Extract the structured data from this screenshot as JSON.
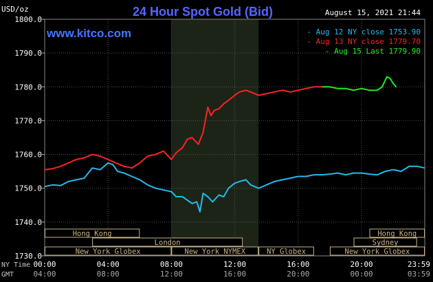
{
  "header": {
    "unit": "USD/oz",
    "title": "24 Hour Spot Gold (Bid)",
    "timestamp": "August 15, 2021 21:44",
    "site": "www.kitco.com"
  },
  "legend": [
    {
      "label": "Aug 12 NY close 1753.90",
      "color": "#22bbee"
    },
    {
      "label": "Aug 13 NY close 1779.70",
      "color": "#ff2222"
    },
    {
      "label": "Aug 15 Last 1779.90",
      "color": "#22ee22"
    }
  ],
  "time_labels": {
    "ny_label": "NY Time",
    "gmt_label": "GMT",
    "ny": [
      "00:00",
      "04:00",
      "08:00",
      "12:00",
      "16:00",
      "20:00",
      "23:59"
    ],
    "gmt": [
      "04:00",
      "08:00",
      "12:00",
      "16:00",
      "20:00",
      "00:00",
      "03:59"
    ]
  },
  "sessions": [
    {
      "label": "Hong Kong",
      "start": 0,
      "end": 6,
      "row": 0
    },
    {
      "label": "London",
      "start": 3,
      "end": 12.5,
      "row": 1
    },
    {
      "label": "New York Globex",
      "start": 0,
      "end": 8,
      "row": 2
    },
    {
      "label": "New York NYMEX",
      "start": 8,
      "end": 13.5,
      "row": 2
    },
    {
      "label": "NY Globex",
      "start": 13.5,
      "end": 17,
      "row": 2
    },
    {
      "label": "Hong Kong",
      "start": 20.5,
      "end": 23.99,
      "row": 0
    },
    {
      "label": "Sydney",
      "start": 19.5,
      "end": 23.5,
      "row": 1
    },
    {
      "label": "New York Globex",
      "start": 18,
      "end": 23.99,
      "row": 2
    }
  ],
  "colors": {
    "background": "#000000",
    "grid": "#555555",
    "highlight": "#1c2418",
    "session_border": "#c8b48a",
    "title": "#5566ff",
    "text": "#ffffff",
    "time_text": "#c8c8c8"
  },
  "chart_data": {
    "type": "line",
    "title": "24 Hour Spot Gold (Bid)",
    "ylabel": "USD/oz",
    "xlabel": "NY Time",
    "xlim": [
      0,
      23.99
    ],
    "ylim": [
      1730,
      1800
    ],
    "yticks": [
      1730.0,
      1740.0,
      1750.0,
      1760.0,
      1770.0,
      1780.0,
      1790.0,
      1800.0
    ],
    "x_highlight": [
      8,
      13.5
    ],
    "grid": true,
    "legend_position": "top-right",
    "series": [
      {
        "name": "Aug 12 NY close 1753.90",
        "color": "#22bbee",
        "x": [
          0,
          0.5,
          1,
          1.5,
          2,
          2.5,
          3,
          3.5,
          4,
          4.3,
          4.6,
          5,
          5.5,
          6,
          6.5,
          7,
          7.5,
          8,
          8.3,
          8.7,
          9,
          9.3,
          9.6,
          9.8,
          10,
          10.3,
          10.6,
          11,
          11.3,
          11.6,
          12,
          12.3,
          12.7,
          13,
          13.5,
          14,
          14.5,
          15,
          15.5,
          16,
          16.5,
          17,
          17.5,
          18,
          18.5,
          19,
          19.5,
          20,
          20.5,
          21,
          21.5,
          22,
          22.5,
          23,
          23.5,
          23.99
        ],
        "y": [
          1750.5,
          1751.0,
          1750.8,
          1752.0,
          1752.5,
          1753.0,
          1756.0,
          1755.5,
          1757.5,
          1757.0,
          1755.0,
          1754.5,
          1753.5,
          1752.5,
          1751.0,
          1750.0,
          1749.5,
          1749.0,
          1747.5,
          1747.5,
          1746.5,
          1745.5,
          1746.0,
          1743.0,
          1748.5,
          1747.5,
          1746.0,
          1748.0,
          1747.5,
          1750.0,
          1751.5,
          1752.0,
          1752.5,
          1751.0,
          1750.0,
          1751.0,
          1752.0,
          1752.5,
          1753.0,
          1753.5,
          1753.5,
          1754.0,
          1754.0,
          1754.2,
          1754.5,
          1754.0,
          1754.5,
          1754.5,
          1754.2,
          1754.0,
          1755.0,
          1755.5,
          1755.0,
          1756.5,
          1756.5,
          1756.0
        ]
      },
      {
        "name": "Aug 13 NY close 1779.70",
        "color": "#ff2222",
        "x": [
          0,
          0.5,
          1,
          1.5,
          2,
          2.5,
          3,
          3.5,
          4,
          4.5,
          5,
          5.5,
          6,
          6.5,
          7,
          7.5,
          8,
          8.3,
          8.7,
          9,
          9.3,
          9.7,
          10,
          10.3,
          10.5,
          10.7,
          11,
          11.3,
          11.6,
          12,
          12.3,
          12.7,
          13,
          13.5,
          14,
          14.5,
          15,
          15.5,
          16,
          16.5,
          17,
          17.5
        ],
        "y": [
          1755.5,
          1755.8,
          1756.5,
          1757.5,
          1758.5,
          1759.0,
          1760.0,
          1759.5,
          1758.5,
          1757.5,
          1756.5,
          1756.0,
          1757.5,
          1759.5,
          1760.0,
          1761.0,
          1758.5,
          1760.5,
          1762.0,
          1764.5,
          1765.0,
          1763.0,
          1766.5,
          1774.0,
          1771.5,
          1773.0,
          1773.5,
          1775.0,
          1776.0,
          1777.5,
          1778.5,
          1779.0,
          1778.5,
          1777.5,
          1778.0,
          1778.5,
          1779.0,
          1778.5,
          1779.0,
          1779.5,
          1780.0,
          1780.0
        ]
      },
      {
        "name": "Aug 15 Last 1779.90",
        "color": "#22ee22",
        "x": [
          17.5,
          18,
          18.5,
          19,
          19.5,
          20,
          20.5,
          21,
          21.3,
          21.6,
          21.8,
          22,
          22.2
        ],
        "y": [
          1780.0,
          1780.0,
          1779.5,
          1779.5,
          1779.0,
          1779.5,
          1779.0,
          1779.0,
          1780.0,
          1783.0,
          1782.5,
          1781.0,
          1779.9
        ]
      }
    ]
  }
}
